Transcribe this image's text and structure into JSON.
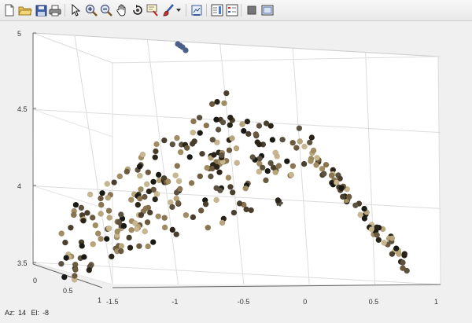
{
  "toolbar": {
    "buttons": [
      {
        "name": "new-figure-icon"
      },
      {
        "name": "open-file-icon"
      },
      {
        "name": "save-icon"
      },
      {
        "name": "print-icon"
      },
      {
        "name": "pointer-icon"
      },
      {
        "name": "zoom-in-icon"
      },
      {
        "name": "zoom-out-icon"
      },
      {
        "name": "pan-icon"
      },
      {
        "name": "rotate-3d-icon"
      },
      {
        "name": "data-cursor-icon"
      },
      {
        "name": "brush-icon"
      },
      {
        "name": "brush-dropdown-icon"
      },
      {
        "name": "link-plot-icon"
      },
      {
        "name": "insert-colorbar-icon"
      },
      {
        "name": "insert-legend-icon"
      },
      {
        "name": "hide-plot-tools-icon"
      },
      {
        "name": "show-plot-tools-icon"
      }
    ]
  },
  "status": {
    "az_label": "Az:",
    "az_value": "14",
    "el_label": "El:",
    "el_value": "-8"
  },
  "chart_data": {
    "type": "scatter",
    "projection": "3d",
    "view": {
      "azimuth": 14,
      "elevation": -8
    },
    "xlim": [
      -1.5,
      1
    ],
    "zlim": [
      3.5,
      5
    ],
    "ylim": [
      0,
      1
    ],
    "xticks": [
      "-1.5",
      "-1",
      "-0.5",
      "0",
      "0.5",
      "1"
    ],
    "zticks": [
      "3.5",
      "4",
      "4.5",
      "5"
    ],
    "yticks": [
      "0",
      "0.5",
      "1"
    ],
    "grid": true,
    "colors": {
      "points": [
        "#2a2418",
        "#4a3f2c",
        "#6b5a3e",
        "#8a7550",
        "#a28c62",
        "#b9a57a",
        "#c8b68e",
        "#1a1a14",
        "#5c5240"
      ],
      "outlier": "#4a5f8a"
    },
    "outliers": [
      {
        "x": -0.95,
        "z": 4.93
      },
      {
        "x": -0.93,
        "z": 4.91
      },
      {
        "x": -0.97,
        "z": 4.92
      },
      {
        "x": -0.94,
        "z": 4.94
      }
    ]
  }
}
